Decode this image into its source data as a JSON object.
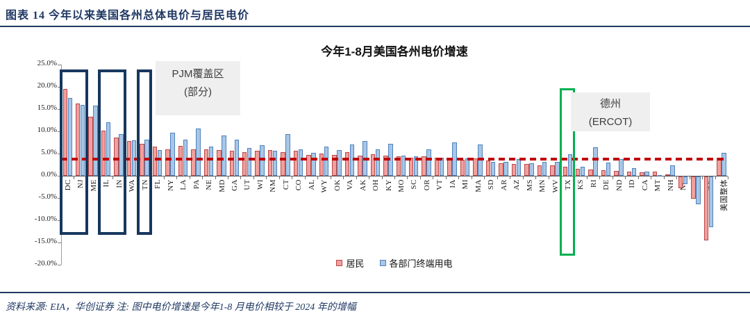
{
  "header": {
    "title": "图表 14  今年以来美国各州总体电价与居民电价"
  },
  "footer": {
    "note": "资料来源: EIA，华创证券    注: 图中电价增速是今年1-8 月电价相较于 2024 年的增幅"
  },
  "annotations": {
    "pjm": {
      "line1": "PJM覆盖区",
      "line2": "(部分)"
    },
    "texas": {
      "line1": "德州",
      "line2": "(ERCOT)"
    }
  },
  "chart_data": {
    "type": "bar",
    "title": "今年1-8月美国各州电价增速",
    "categories": [
      "DC",
      "NJ",
      "ME",
      "IL",
      "IN",
      "WA",
      "TN",
      "FL",
      "NY",
      "LA",
      "PA",
      "NE",
      "MD",
      "GA",
      "UT",
      "WI",
      "NM",
      "CT",
      "CO",
      "AL",
      "WY",
      "OK",
      "VA",
      "AK",
      "OH",
      "KY",
      "MO",
      "SC",
      "OR",
      "VT",
      "IA",
      "MI",
      "MA",
      "SD",
      "AR",
      "AZ",
      "MS",
      "MN",
      "WV",
      "TX",
      "KS",
      "RI",
      "DE",
      "ND",
      "ID",
      "CA",
      "MT",
      "NH",
      "NC",
      "HI",
      "NV",
      "美国整体"
    ],
    "series": [
      {
        "name": "居民",
        "fill": "#f0a09e",
        "border": "#b94545",
        "values": [
          19.5,
          16.2,
          13.3,
          10.2,
          8.6,
          7.8,
          7.2,
          6.6,
          6.0,
          6.7,
          5.9,
          5.9,
          5.8,
          5.6,
          5.3,
          5.6,
          5.8,
          5.3,
          5.6,
          4.7,
          5.0,
          4.7,
          5.3,
          4.6,
          4.8,
          4.5,
          4.4,
          4.1,
          4.3,
          4.0,
          3.8,
          3.6,
          3.9,
          3.4,
          2.8,
          2.7,
          2.6,
          2.4,
          2.3,
          2.0,
          1.5,
          1.4,
          1.3,
          1.1,
          1.0,
          0.8,
          0.9,
          0.3,
          -2.6,
          -5.0,
          -14.3,
          4.0
        ]
      },
      {
        "name": "各部门终端用电",
        "fill": "#a8c6e5",
        "border": "#4f81bd",
        "values": [
          17.5,
          15.9,
          15.8,
          12.0,
          9.4,
          7.9,
          8.1,
          5.8,
          9.7,
          8.1,
          10.6,
          6.5,
          9.1,
          8.2,
          6.3,
          6.8,
          5.6,
          9.4,
          5.9,
          5.2,
          6.5,
          5.8,
          7.0,
          7.8,
          5.9,
          7.2,
          4.5,
          4.4,
          6.0,
          4.1,
          7.5,
          3.9,
          7.1,
          3.2,
          3.1,
          3.8,
          2.8,
          3.1,
          3.2,
          4.8,
          2.0,
          6.4,
          2.9,
          3.8,
          1.7,
          1.0,
          0.2,
          2.3,
          -1.7,
          -6.3,
          -11.4,
          5.2
        ]
      }
    ],
    "ylim": [
      -20,
      25
    ],
    "ytick_step": 5,
    "ytick_labels": [
      "25.0%",
      "20.0%",
      "15.0%",
      "10.0%",
      "5.0%",
      "0.0%",
      "-5.0%",
      "-10.0%",
      "-15.0%",
      "-20.0%"
    ],
    "reference_line": {
      "value": 3.7,
      "color": "#c00000",
      "style": "dashed"
    },
    "legend_position": "bottom",
    "grid": false,
    "highlight_boxes": [
      {
        "group": "PJM覆盖区(部分)",
        "first": 0,
        "last": 1,
        "color": "#17375e"
      },
      {
        "group": "PJM覆盖区(部分)",
        "first": 3,
        "last": 4,
        "color": "#17375e"
      },
      {
        "group": "PJM覆盖区(部分)",
        "first": 6,
        "last": 6,
        "color": "#17375e"
      },
      {
        "group": "德州(ERCOT)",
        "first": 39,
        "last": 39,
        "color": "#00b050"
      }
    ]
  }
}
